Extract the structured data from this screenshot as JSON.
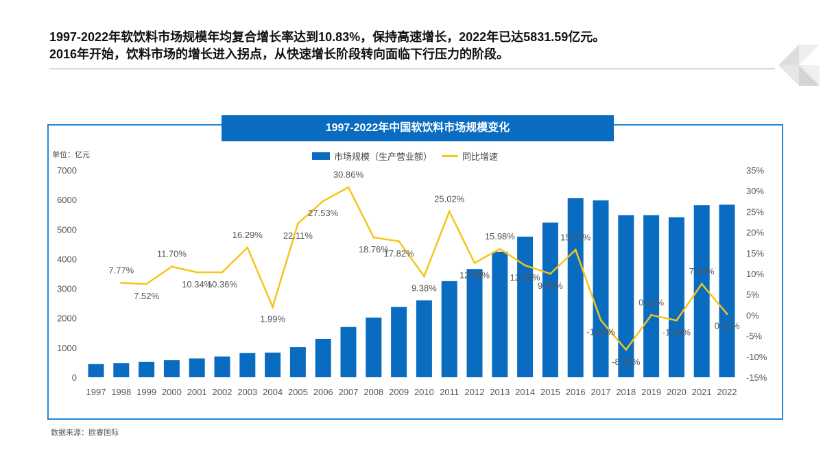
{
  "headline": [
    "1997-2022年软饮料市场规模年均复合增长率达到10.83%，保持高速增长，2022年已达5831.59亿元。",
    "2016年开始，饮料市场的增长进入拐点，从快速增长阶段转向面临下行压力的阶段。"
  ],
  "source": "数据来源：欧睿国际",
  "colors": {
    "bar": "#0a6cc1",
    "line": "#f5c518",
    "frame": "#1f88d6"
  },
  "chart_data": {
    "type": "bar+line",
    "title": "1997-2022年中国软饮料市场规模变化",
    "unit_label": "单位：亿元",
    "categories": [
      "1997",
      "1998",
      "1999",
      "2000",
      "2001",
      "2002",
      "2003",
      "2004",
      "2005",
      "2006",
      "2007",
      "2008",
      "2009",
      "2010",
      "2011",
      "2012",
      "2013",
      "2014",
      "2015",
      "2016",
      "2017",
      "2018",
      "2019",
      "2020",
      "2021",
      "2022"
    ],
    "series": [
      {
        "name": "市场规模（生产营业额）",
        "type": "bar",
        "axis": "left",
        "values": [
          446,
          481,
          517,
          577,
          637,
          703,
          817,
          833,
          1018,
          1298,
          1698,
          2017,
          2376,
          2599,
          3249,
          3658,
          4243,
          4752,
          5226,
          6049,
          5976,
          5477,
          5477,
          5407,
          5814,
          5831.59
        ]
      },
      {
        "name": "同比增速",
        "type": "line",
        "axis": "right",
        "values": [
          null,
          7.77,
          7.52,
          11.7,
          10.34,
          10.36,
          16.29,
          1.99,
          22.11,
          27.53,
          30.86,
          18.76,
          17.82,
          9.38,
          25.02,
          12.58,
          15.98,
          12.0,
          9.98,
          15.75,
          -1.21,
          -8.35,
          0.01,
          -1.29,
          7.53,
          0.31
        ]
      }
    ],
    "yleft": {
      "range": [
        0,
        7000
      ],
      "ticks": [
        "0",
        "1000",
        "2000",
        "3000",
        "4000",
        "5000",
        "6000",
        "7000"
      ]
    },
    "yright": {
      "range": [
        -15,
        35
      ],
      "ticks": [
        "-15%",
        "-10%",
        "-5%",
        "0%",
        "5%",
        "10%",
        "15%",
        "20%",
        "25%",
        "30%",
        "35%"
      ]
    },
    "legend": "top",
    "grid": false
  }
}
